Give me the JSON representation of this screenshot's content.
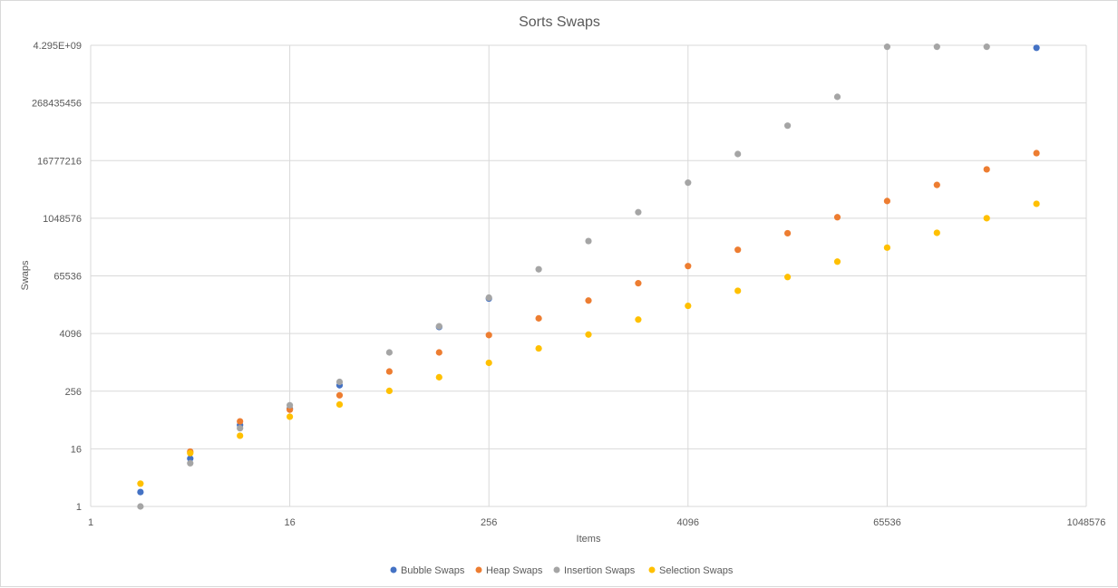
{
  "chart_data": {
    "type": "scatter",
    "title": "Sorts Swaps",
    "xlabel": "Items",
    "ylabel": "Swaps",
    "x_scale": "log2",
    "y_scale": "log2",
    "xlim": [
      1,
      1048576
    ],
    "ylim": [
      1,
      4294967296
    ],
    "x_tick_values": [
      1,
      16,
      256,
      4096,
      65536,
      1048576
    ],
    "x_tick_labels": [
      "1",
      "16",
      "256",
      "4096",
      "65536",
      "1048576"
    ],
    "y_tick_values": [
      1,
      16,
      256,
      4096,
      65536,
      1048576,
      16777216,
      268435456,
      4294967296
    ],
    "y_tick_labels": [
      "1",
      "16",
      "256",
      "4096",
      "65536",
      "1048576",
      "16777216",
      "268435456",
      "4.295E+09"
    ],
    "grid": true,
    "legend_position": "bottom",
    "x": [
      2,
      4,
      8,
      16,
      32,
      64,
      128,
      256,
      512,
      1024,
      2048,
      4096,
      8192,
      16384,
      32768,
      65536,
      131072,
      262144,
      524288
    ],
    "series": [
      {
        "name": "Bubble Swaps",
        "color": "#4472C4",
        "x": [
          2,
          4,
          8,
          16,
          32,
          128,
          256,
          524288
        ],
        "values": [
          2,
          10,
          50,
          110,
          340,
          5600,
          22000,
          3800000000
        ]
      },
      {
        "name": "Heap Swaps",
        "color": "#ED7D31",
        "x": [
          4,
          8,
          16,
          32,
          64,
          128,
          256,
          512,
          1024,
          2048,
          4096,
          8192,
          16384,
          32768,
          65536,
          131072,
          262144,
          524288
        ],
        "values": [
          14,
          60,
          105,
          210,
          660,
          1650,
          3800,
          8500,
          20000,
          46000,
          105000,
          230000,
          510000,
          1100000,
          2400000,
          5200000,
          11000000,
          24000000
        ]
      },
      {
        "name": "Insertion Swaps",
        "color": "#A5A5A5",
        "x": [
          2,
          4,
          8,
          16,
          32,
          64,
          128,
          256,
          512,
          1024,
          2048,
          4096,
          8192,
          16384,
          32768,
          65536,
          131072,
          262144
        ],
        "values": [
          1,
          8,
          43,
          130,
          400,
          1650,
          5800,
          23000,
          90000,
          350000,
          1400000,
          5800000,
          23000000,
          90000000,
          360000000,
          4000000000,
          4000000000,
          4000000000
        ]
      },
      {
        "name": "Selection Swaps",
        "color": "#FFC000",
        "x": [
          2,
          4,
          8,
          16,
          32,
          64,
          128,
          256,
          512,
          1024,
          2048,
          4096,
          8192,
          16384,
          32768,
          65536,
          131072,
          262144,
          524288
        ],
        "values": [
          3,
          13,
          30,
          75,
          135,
          260,
          500,
          1000,
          2000,
          3900,
          8000,
          15500,
          32000,
          62000,
          130000,
          255000,
          520000,
          1050000,
          2100000
        ]
      }
    ]
  }
}
